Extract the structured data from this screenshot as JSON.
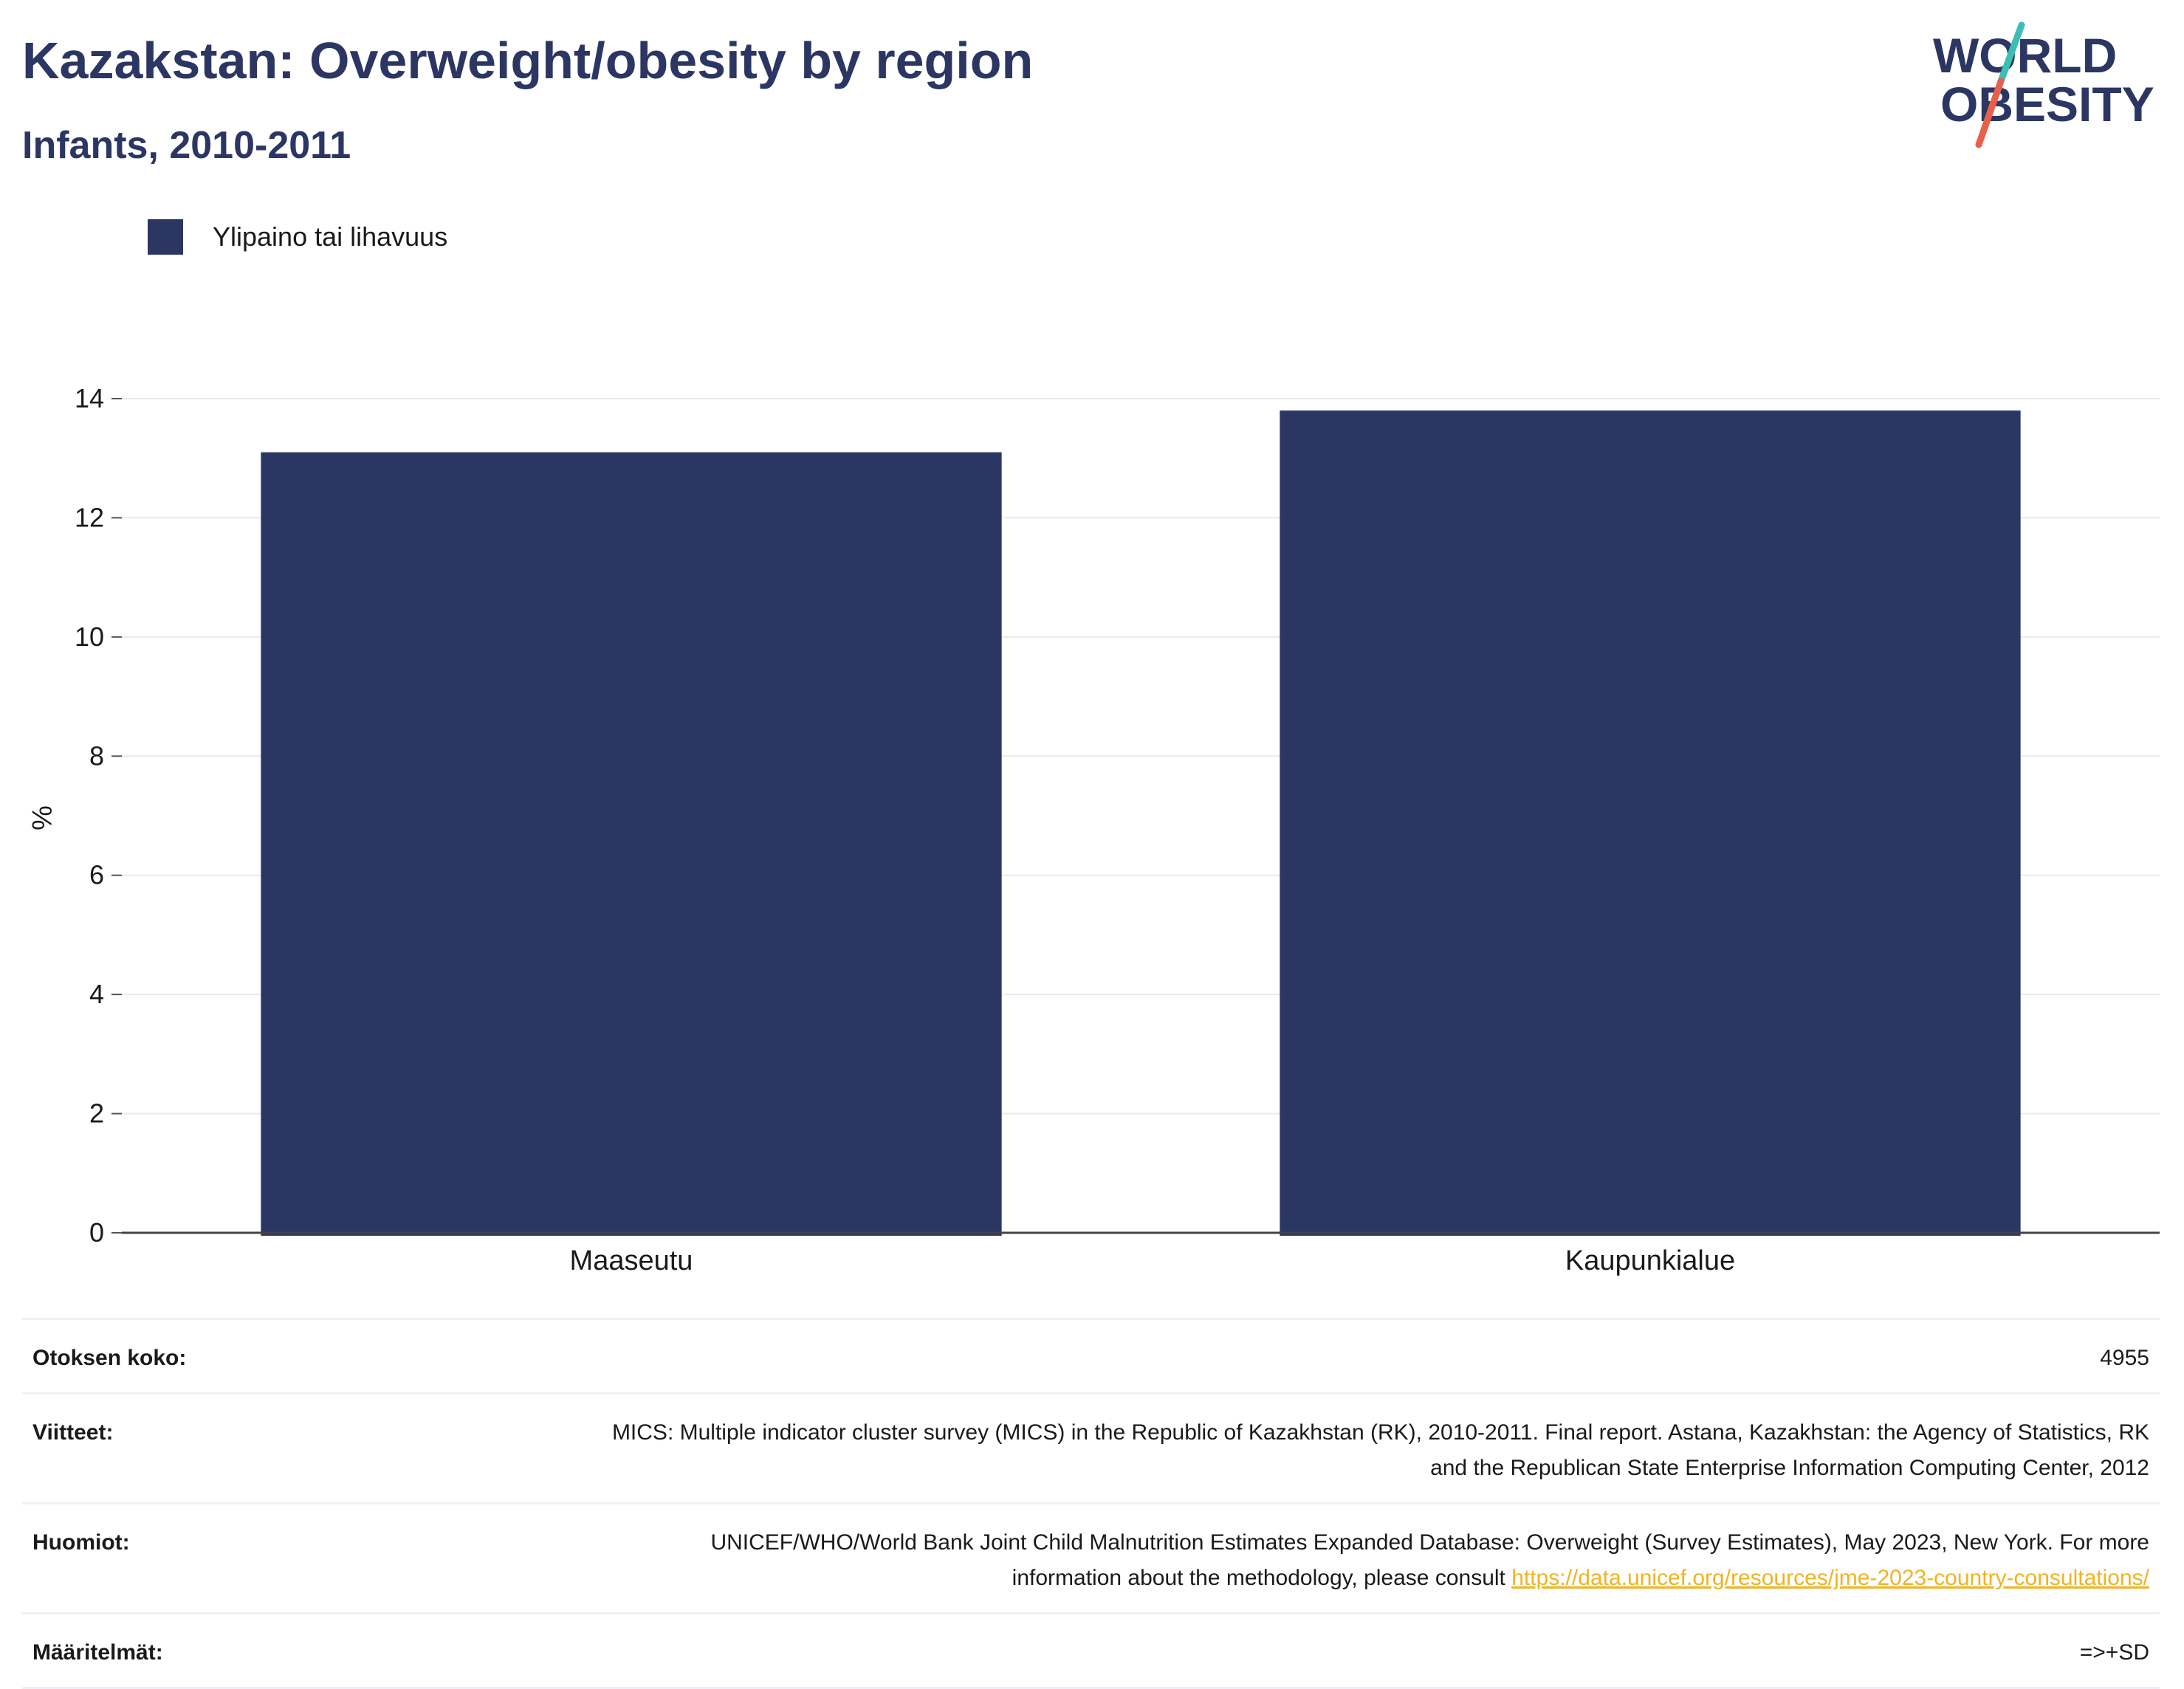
{
  "header": {
    "title": "Kazakstan: Overweight/obesity by region",
    "subtitle": "Infants, 2010-2011"
  },
  "logo": {
    "line1": "WORLD",
    "line2": "OBESITY",
    "colors": {
      "text": "#2b3663",
      "slash_top": "#3bbfb5",
      "slash_bottom": "#e8604c"
    }
  },
  "legend": {
    "label": "Ylipaino tai lihavuus",
    "color": "#2b3663"
  },
  "chart_data": {
    "type": "bar",
    "categories": [
      "Maaseutu",
      "Kaupunkialue"
    ],
    "series": [
      {
        "name": "Ylipaino tai lihavuus",
        "values": [
          13.1,
          13.8
        ],
        "color": "#2b3663"
      }
    ],
    "ylabel": "%",
    "xlabel": "",
    "ylim": [
      0,
      14
    ],
    "yticks": [
      0,
      2,
      4,
      6,
      8,
      10,
      12,
      14
    ],
    "grid": true,
    "legend_position": "top-left"
  },
  "info": {
    "sample_size": {
      "label": "Otoksen koko:",
      "value": "4955"
    },
    "references": {
      "label": "Viitteet:",
      "value": "MICS: Multiple indicator cluster survey (MICS) in the Republic of Kazakhstan (RK), 2010-2011. Final report. Astana, Kazakhstan: the Agency of Statistics, RK and the Republican State Enterprise Information Computing Center, 2012"
    },
    "notes": {
      "label": "Huomiot:",
      "value": "UNICEF/WHO/World Bank Joint Child Malnutrition Estimates Expanded Database: Overweight (Survey Estimates), May 2023, New York. For more information about the methodology, please consult ",
      "link": "https://data.unicef.org/resources/jme-2023-country-consultations/"
    },
    "definitions": {
      "label": "Määritelmät:",
      "value": "=>+SD"
    }
  }
}
